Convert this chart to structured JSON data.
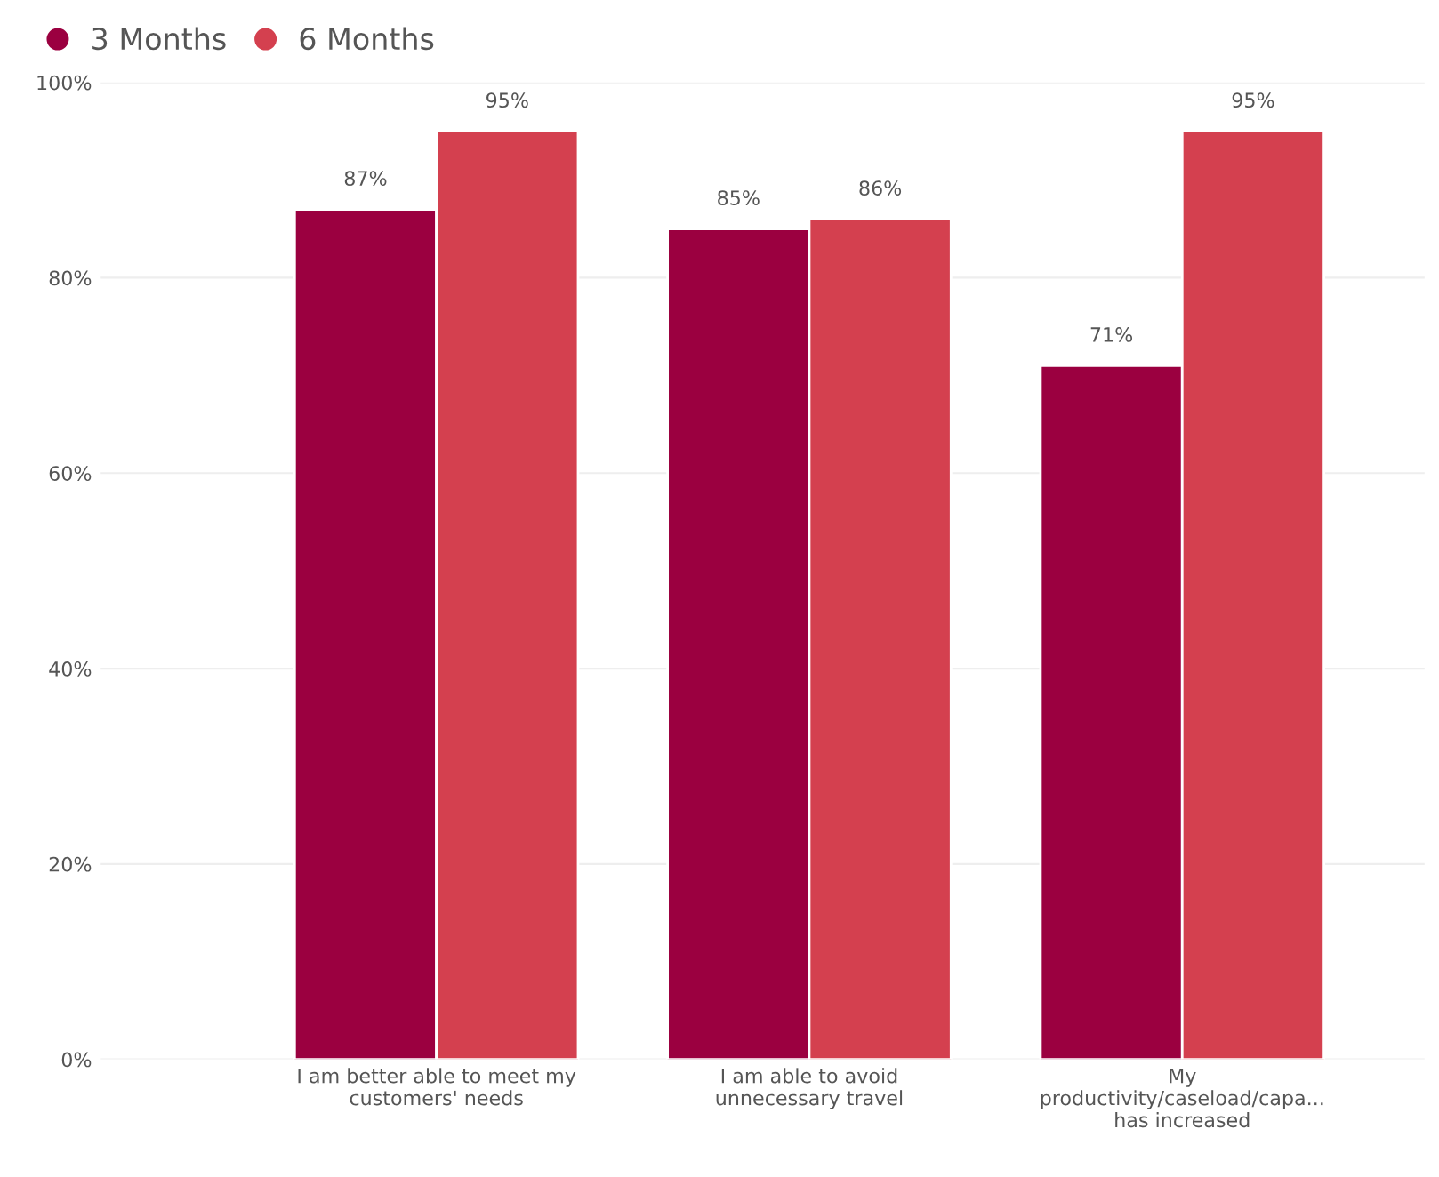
{
  "chart_data": {
    "type": "bar",
    "categories": [
      "I am better able to meet my\ncustomers' needs",
      "I am able to avoid\nunnecessary travel",
      "My\nproductivity/caseload/capa...\nhas increased"
    ],
    "series": [
      {
        "name": "3 Months",
        "color": "#9b0040",
        "values": [
          87,
          85,
          71
        ],
        "value_labels": [
          "87%",
          "85%",
          "71%"
        ]
      },
      {
        "name": "6 Months",
        "color": "#d4404f",
        "values": [
          95,
          86,
          95
        ],
        "value_labels": [
          "95%",
          "86%",
          "95%"
        ]
      }
    ],
    "ylim": [
      0,
      100
    ],
    "yticks": [
      {
        "value": 0,
        "label": "0%"
      },
      {
        "value": 20,
        "label": "20%"
      },
      {
        "value": 40,
        "label": "40%"
      },
      {
        "value": 60,
        "label": "60%"
      },
      {
        "value": 80,
        "label": "80%"
      },
      {
        "value": 100,
        "label": "100%"
      }
    ],
    "grid": "y",
    "legend": "top left"
  }
}
